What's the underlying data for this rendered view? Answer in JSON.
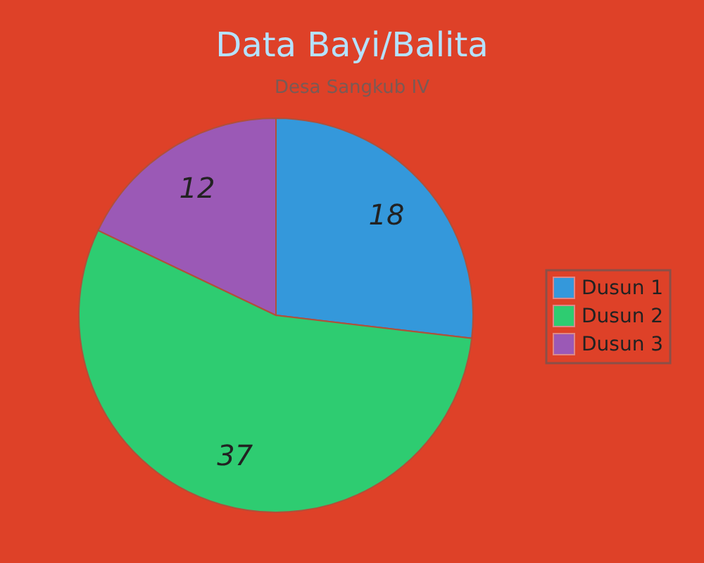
{
  "chart_data": {
    "type": "pie",
    "title": "Data Bayi/Balita",
    "subtitle": "Desa Sangkub IV",
    "categories": [
      "Dusun 1",
      "Dusun 2",
      "Dusun 3"
    ],
    "values": [
      18,
      37,
      12
    ],
    "colors": [
      "#3498db",
      "#2ecc71",
      "#9b59b6"
    ],
    "data_labels": true,
    "legend": "right"
  }
}
